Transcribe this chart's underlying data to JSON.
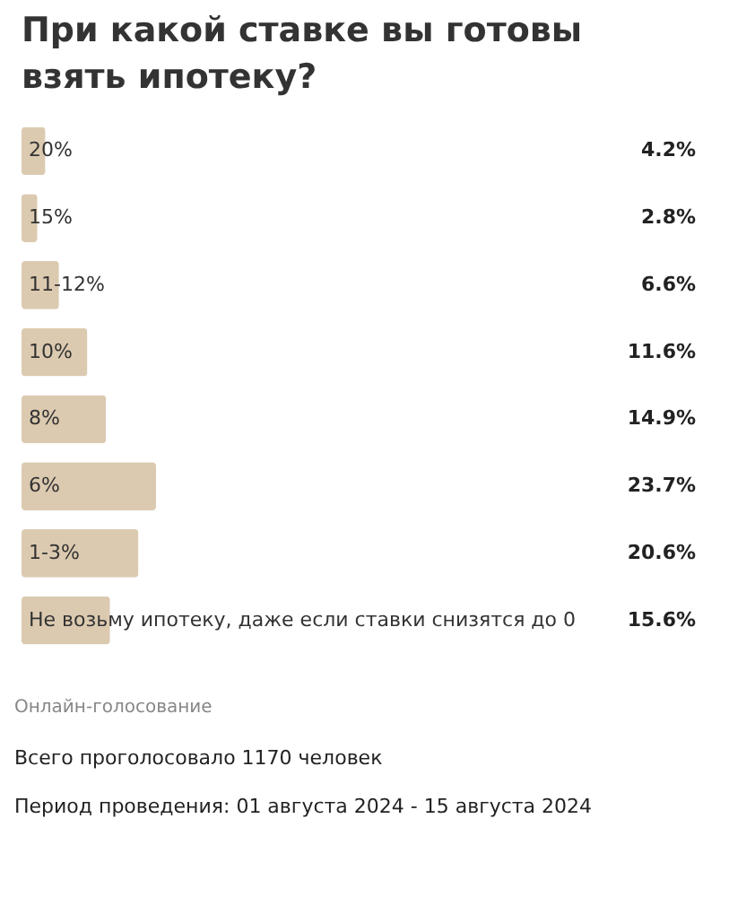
{
  "chart_data": {
    "type": "bar",
    "orientation": "horizontal",
    "title": "При какой ставке вы готовы взять ипотеку?",
    "categories": [
      "20%",
      "15%",
      "11-12%",
      "10%",
      "8%",
      "6%",
      "1-3%",
      "Не возьму ипотеку, даже если ставки снизятся до 0"
    ],
    "values": [
      4.2,
      2.8,
      6.6,
      11.6,
      14.9,
      23.7,
      20.6,
      15.6
    ],
    "value_labels": [
      "4.2%",
      "2.8%",
      "6.6%",
      "11.6%",
      "14.9%",
      "23.7%",
      "20.6%",
      "15.6%"
    ],
    "color": "#dccab0",
    "annotations": [
      "Онлайн-голосование",
      "Всего проголосовало 1170 человек",
      "Период проведения: 01 августа 2024 - 15 августа 2024"
    ]
  }
}
